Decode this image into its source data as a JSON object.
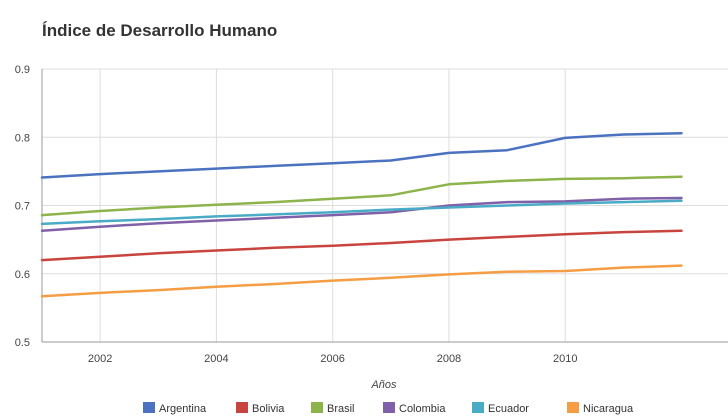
{
  "chart_data": {
    "type": "line",
    "title": "Índice de Desarrollo Humano",
    "xlabel": "Años",
    "ylabel": "",
    "xlim": [
      2001,
      2012.8
    ],
    "ylim": [
      0.5,
      0.9
    ],
    "x_ticks": [
      "2002",
      "2004",
      "2006",
      "2008",
      "2010"
    ],
    "y_ticks": [
      "0.5",
      "0.6",
      "0.7",
      "0.8",
      "0.9"
    ],
    "grid": true,
    "legend_position": "bottom",
    "x": [
      2001,
      2002,
      2003,
      2004,
      2005,
      2006,
      2007,
      2008,
      2009,
      2010,
      2011,
      2012
    ],
    "series": [
      {
        "name": "Argentina",
        "color": "#4a72c0",
        "values": [
          0.741,
          0.746,
          0.75,
          0.754,
          0.758,
          0.762,
          0.766,
          0.777,
          0.781,
          0.799,
          0.804,
          0.806
        ]
      },
      {
        "name": "Bolivia",
        "color": "#c8443f",
        "values": [
          0.62,
          0.625,
          0.63,
          0.634,
          0.638,
          0.641,
          0.645,
          0.65,
          0.654,
          0.658,
          0.661,
          0.663
        ]
      },
      {
        "name": "Brasil",
        "color": "#8db44a",
        "values": [
          0.686,
          0.692,
          0.697,
          0.701,
          0.705,
          0.71,
          0.715,
          0.731,
          0.736,
          0.739,
          0.74,
          0.742
        ]
      },
      {
        "name": "Colombia",
        "color": "#8060a8",
        "values": [
          0.663,
          0.669,
          0.674,
          0.678,
          0.682,
          0.686,
          0.69,
          0.7,
          0.705,
          0.706,
          0.71,
          0.711
        ]
      },
      {
        "name": "Ecuador",
        "color": "#4aabc6",
        "values": [
          0.673,
          0.677,
          0.68,
          0.684,
          0.687,
          0.69,
          0.694,
          0.697,
          0.7,
          0.703,
          0.705,
          0.707
        ]
      },
      {
        "name": "Nicaragua",
        "color": "#f59d44",
        "values": [
          0.567,
          0.572,
          0.576,
          0.581,
          0.585,
          0.59,
          0.594,
          0.599,
          0.603,
          0.604,
          0.609,
          0.612
        ]
      }
    ]
  }
}
